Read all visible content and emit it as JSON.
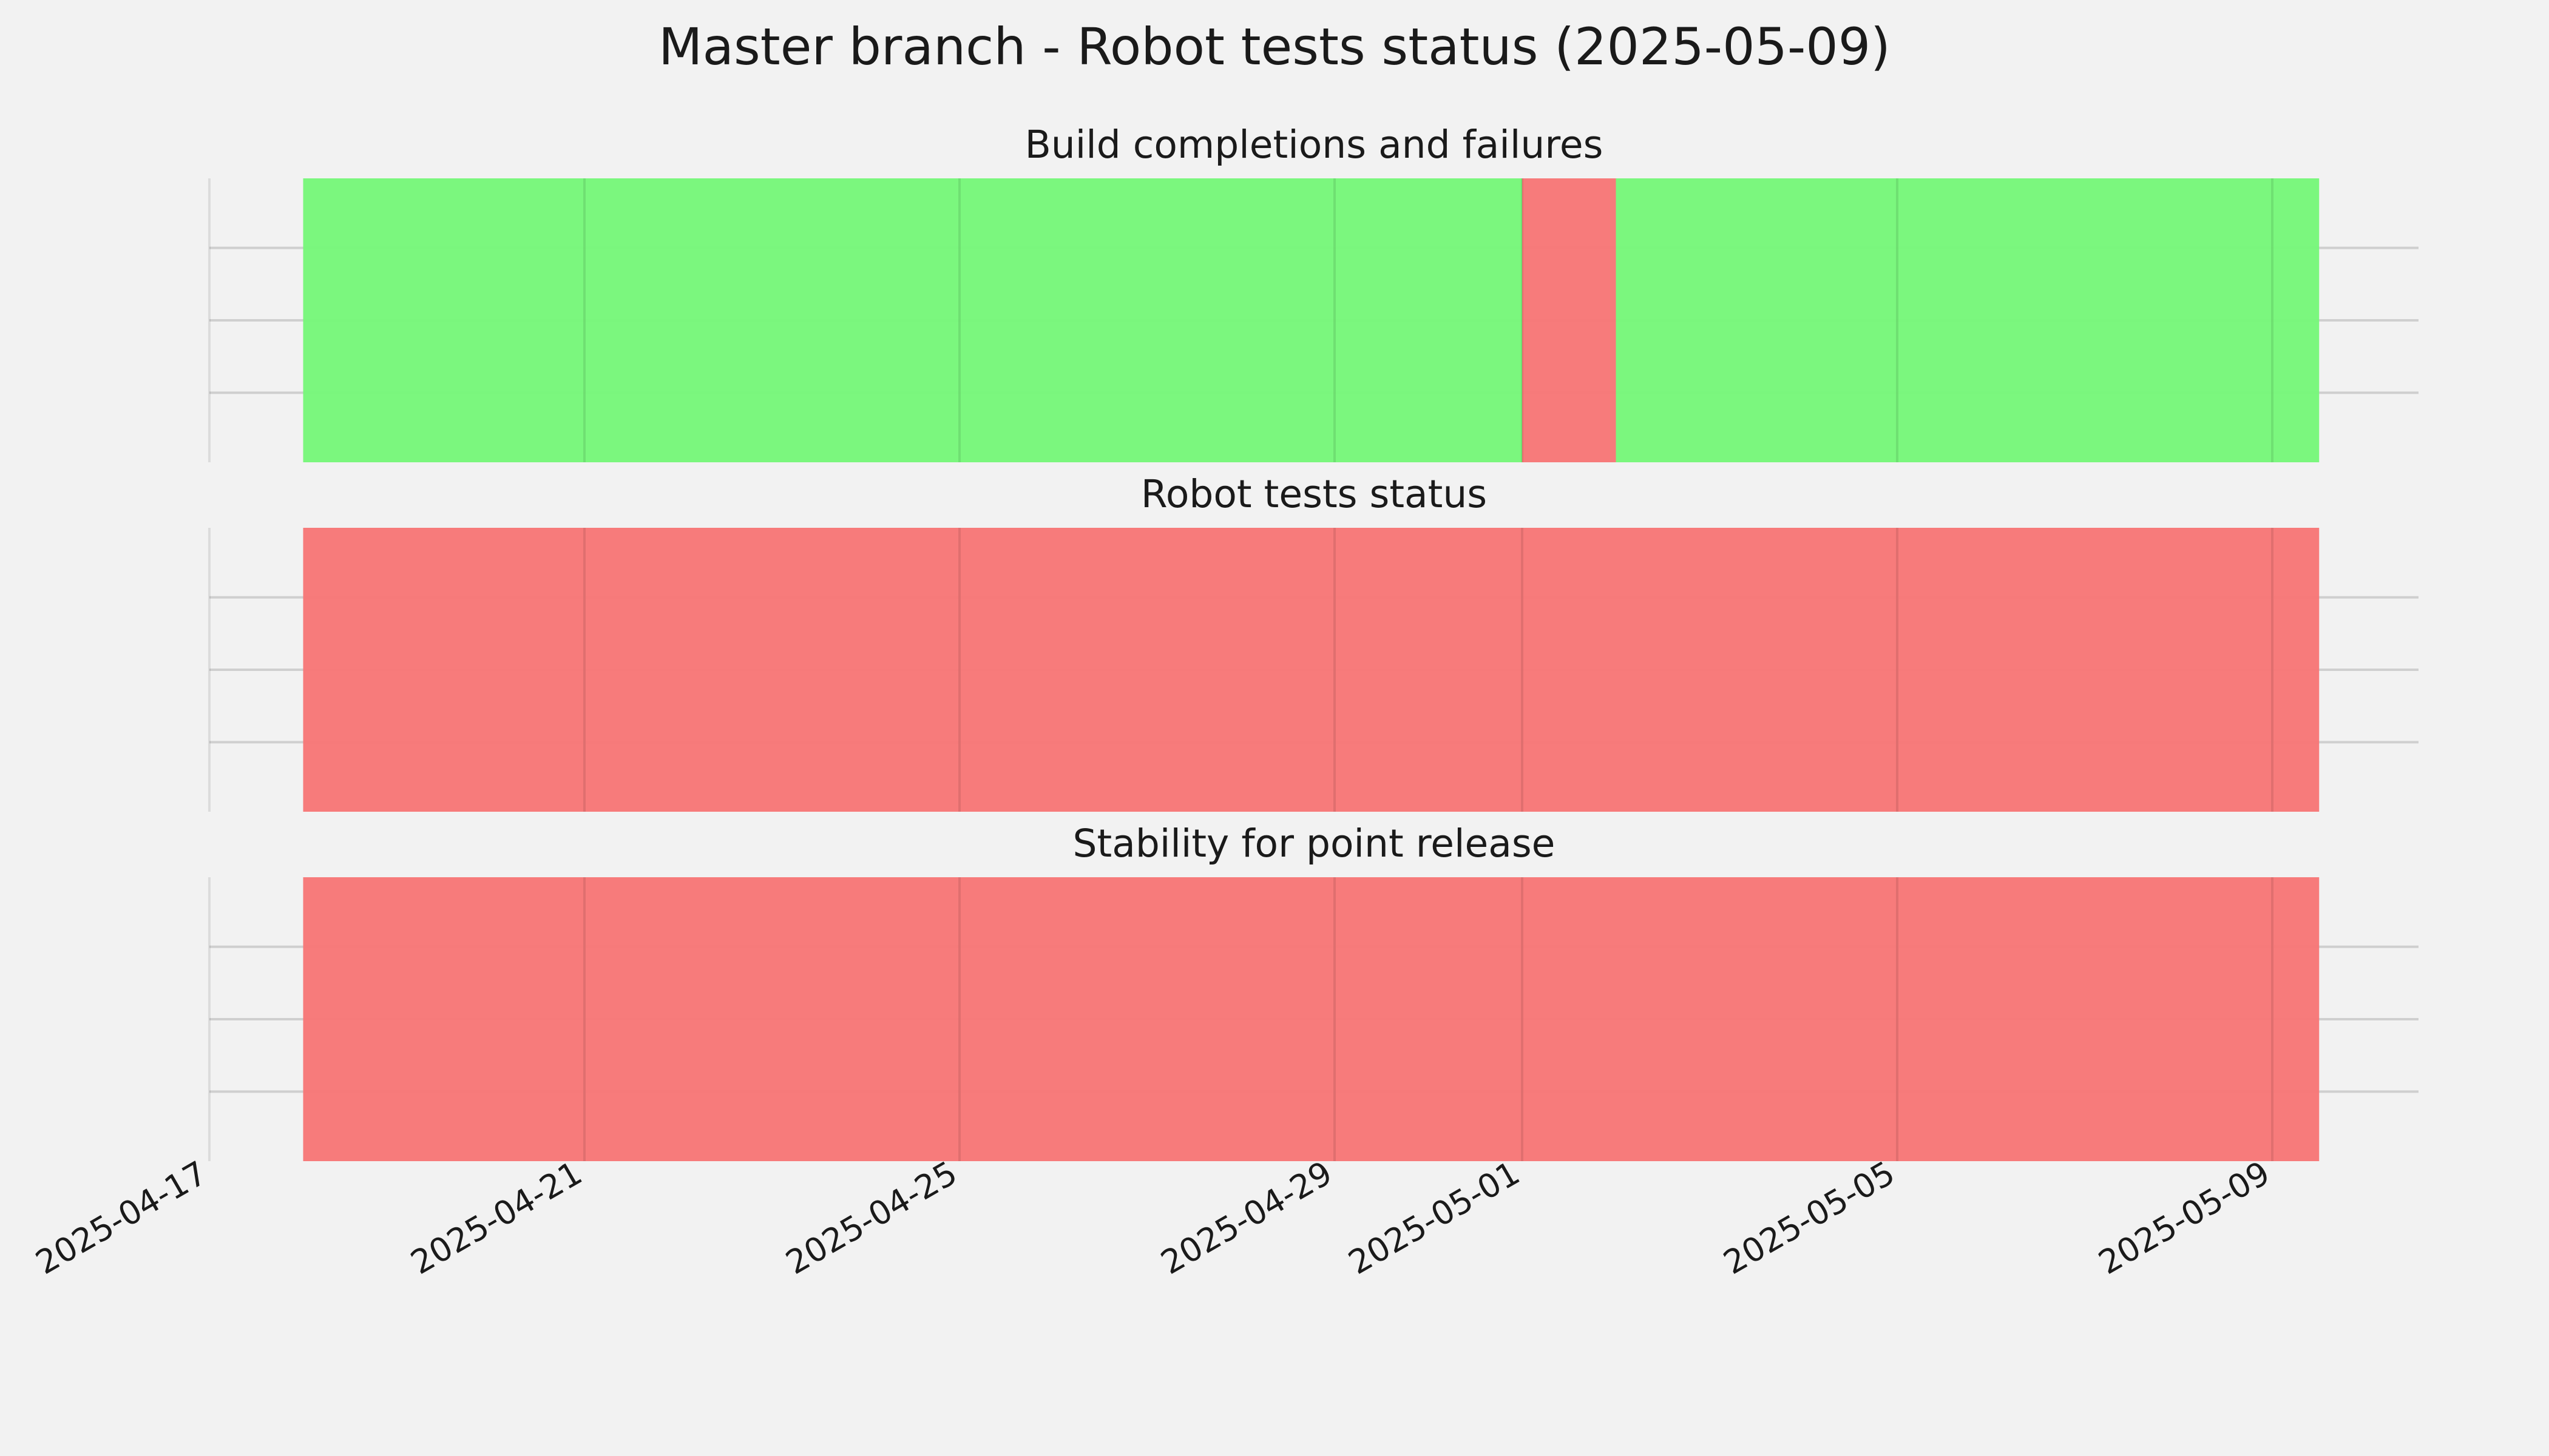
{
  "chart_data": {
    "type": "timeline",
    "title": "Master branch - Robot tests status (2025-05-09)",
    "x_ticks": [
      "2025-04-17",
      "2025-04-21",
      "2025-04-25",
      "2025-04-29",
      "2025-05-01",
      "2025-05-05",
      "2025-05-09"
    ],
    "colors": {
      "pass": "#77f77a",
      "fail": "#f77777",
      "grid": "#cfcfcf"
    },
    "grid": true,
    "panels": [
      {
        "title": "Build completions and failures",
        "segments": [
          {
            "start": "2025-04-18",
            "end": "2025-05-01T00:00",
            "status": "pass"
          },
          {
            "start": "2025-05-01T00:00",
            "end": "2025-05-02",
            "status": "fail"
          },
          {
            "start": "2025-05-02",
            "end": "2025-05-09T12:00",
            "status": "pass"
          }
        ]
      },
      {
        "title": "Robot tests status",
        "segments": [
          {
            "start": "2025-04-18",
            "end": "2025-05-09T12:00",
            "status": "fail"
          }
        ]
      },
      {
        "title": "Stability for point release",
        "segments": [
          {
            "start": "2025-04-18",
            "end": "2025-05-09T12:00",
            "status": "fail"
          }
        ]
      }
    ]
  }
}
